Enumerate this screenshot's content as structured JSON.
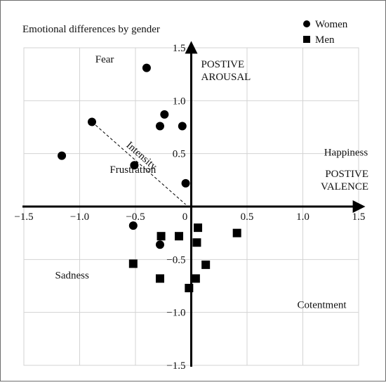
{
  "chart_data": {
    "type": "scatter",
    "title": "Emotional differences by gender",
    "xlabel": "POSTIVE VALENCE",
    "ylabel": "POSTIVE AROUSAL",
    "xlabel_lines": [
      "POSTIVE",
      "VALENCE"
    ],
    "ylabel_lines": [
      "POSTIVE",
      "AROUSAL"
    ],
    "xlim": [
      -1.5,
      1.5
    ],
    "ylim": [
      -1.5,
      1.5
    ],
    "x_ticks": [
      {
        "value": -1.5,
        "label": "−1.5"
      },
      {
        "value": -1.0,
        "label": "−1.0"
      },
      {
        "value": -0.5,
        "label": "−0.5"
      },
      {
        "value": 0.0,
        "label": "0"
      },
      {
        "value": 0.5,
        "label": "0.5"
      },
      {
        "value": 1.0,
        "label": "1.0"
      },
      {
        "value": 1.5,
        "label": "1.5"
      }
    ],
    "y_ticks": [
      {
        "value": 1.5,
        "label": "1.5"
      },
      {
        "value": 1.0,
        "label": "1.0"
      },
      {
        "value": 0.5,
        "label": "0.5"
      },
      {
        "value": -0.5,
        "label": "−0.5"
      },
      {
        "value": -1.0,
        "label": "−1.0"
      },
      {
        "value": -1.5,
        "label": "−1.5"
      }
    ],
    "grid": true,
    "legend_position": "top-right",
    "series": [
      {
        "name": "Women",
        "marker": "circle",
        "points": [
          {
            "x": -0.4,
            "y": 1.31
          },
          {
            "x": -0.24,
            "y": 0.87
          },
          {
            "x": -0.28,
            "y": 0.76
          },
          {
            "x": -0.08,
            "y": 0.76
          },
          {
            "x": -0.89,
            "y": 0.8
          },
          {
            "x": -1.16,
            "y": 0.48
          },
          {
            "x": -0.51,
            "y": 0.39
          },
          {
            "x": -0.05,
            "y": 0.22
          },
          {
            "x": -0.52,
            "y": -0.18
          },
          {
            "x": -0.28,
            "y": -0.36
          }
        ]
      },
      {
        "name": "Men",
        "marker": "square",
        "points": [
          {
            "x": 0.06,
            "y": -0.2
          },
          {
            "x": 0.41,
            "y": -0.25
          },
          {
            "x": -0.27,
            "y": -0.28
          },
          {
            "x": -0.11,
            "y": -0.28
          },
          {
            "x": 0.05,
            "y": -0.34
          },
          {
            "x": -0.52,
            "y": -0.54
          },
          {
            "x": 0.13,
            "y": -0.55
          },
          {
            "x": -0.28,
            "y": -0.68
          },
          {
            "x": 0.04,
            "y": -0.68
          },
          {
            "x": -0.02,
            "y": -0.77
          }
        ]
      }
    ],
    "annotations": [
      {
        "id": "fear",
        "text": "Fear",
        "x": -0.86,
        "y": 1.36
      },
      {
        "id": "frustration",
        "text": "Frustration",
        "x": -0.73,
        "y": 0.32
      },
      {
        "id": "happiness",
        "text": "Happiness",
        "x": 1.19,
        "y": 0.48
      },
      {
        "id": "sadness",
        "text": "Sadness",
        "x": -1.22,
        "y": -0.68
      },
      {
        "id": "contentment",
        "text": "Cotentment",
        "x": 0.95,
        "y": -0.96
      }
    ],
    "intensity_line": {
      "label": "Intensity",
      "from": {
        "x": -0.89,
        "y": 0.8
      },
      "to": {
        "x": -0.05,
        "y": 0.02
      }
    }
  }
}
